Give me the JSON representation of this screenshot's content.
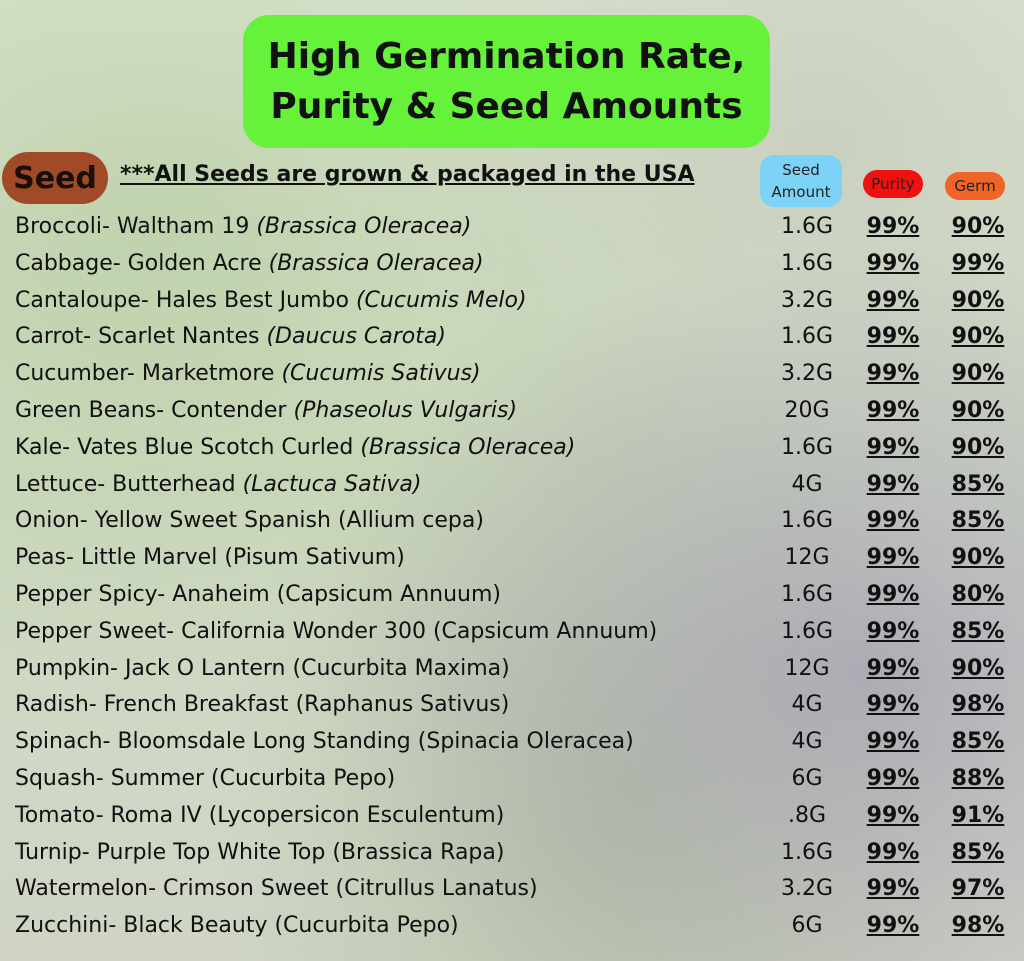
{
  "header": {
    "title": [
      "High Germination Rate,",
      "Purity & Seed Amounts"
    ]
  },
  "table": {
    "headers": {
      "seed": "Seed",
      "amount": "Seed Amount",
      "purity": "Purity",
      "germ": "Germ"
    },
    "note": "***All Seeds are grown & packaged in the USA",
    "rows": [
      {
        "name": "Broccoli- Waltham 19",
        "latin": "(Brassica Oleracea)",
        "italic": true,
        "amount": "1.6G",
        "purity": "99%",
        "germ": "90%"
      },
      {
        "name": "Cabbage- Golden Acre",
        "latin": "(Brassica Oleracea)",
        "italic": true,
        "amount": "1.6G",
        "purity": "99%",
        "germ": "99%"
      },
      {
        "name": "Cantaloupe- Hales Best Jumbo",
        "latin": "(Cucumis Melo)",
        "italic": true,
        "amount": "3.2G",
        "purity": "99%",
        "germ": "90%"
      },
      {
        "name": "Carrot- Scarlet Nantes",
        "latin": "(Daucus Carota)",
        "italic": true,
        "amount": "1.6G",
        "purity": "99%",
        "germ": "90%"
      },
      {
        "name": "Cucumber- Marketmore",
        "latin": "(Cucumis Sativus)",
        "italic": true,
        "amount": "3.2G",
        "purity": "99%",
        "germ": "90%"
      },
      {
        "name": "Green Beans- Contender",
        "latin": "(Phaseolus Vulgaris)",
        "italic": true,
        "amount": "20G",
        "purity": "99%",
        "germ": "90%"
      },
      {
        "name": "Kale- Vates Blue Scotch Curled",
        "latin": "(Brassica Oleracea)",
        "italic": true,
        "amount": "1.6G",
        "purity": "99%",
        "germ": "90%"
      },
      {
        "name": "Lettuce- Butterhead",
        "latin": "(Lactuca Sativa)",
        "italic": true,
        "amount": "4G",
        "purity": "99%",
        "germ": "85%"
      },
      {
        "name": "Onion- Yellow Sweet Spanish",
        "latin": "(Allium cepa)",
        "italic": false,
        "amount": "1.6G",
        "purity": "99%",
        "germ": "85%"
      },
      {
        "name": "Peas- Little Marvel",
        "latin": "(Pisum Sativum)",
        "italic": false,
        "amount": "12G",
        "purity": "99%",
        "germ": "90%"
      },
      {
        "name": "Pepper Spicy- Anaheim",
        "latin": "(Capsicum Annuum)",
        "italic": false,
        "amount": "1.6G",
        "purity": "99%",
        "germ": "80%"
      },
      {
        "name": "Pepper Sweet- California Wonder 300",
        "latin": "(Capsicum Annuum)",
        "italic": false,
        "amount": "1.6G",
        "purity": "99%",
        "germ": "85%"
      },
      {
        "name": "Pumpkin- Jack O Lantern",
        "latin": "(Cucurbita Maxima)",
        "italic": false,
        "amount": "12G",
        "purity": "99%",
        "germ": "90%"
      },
      {
        "name": "Radish- French Breakfast",
        "latin": "(Raphanus Sativus)",
        "italic": false,
        "amount": "4G",
        "purity": "99%",
        "germ": "98%"
      },
      {
        "name": "Spinach- Bloomsdale Long Standing",
        "latin": "(Spinacia Oleracea)",
        "italic": false,
        "amount": "4G",
        "purity": "99%",
        "germ": "85%"
      },
      {
        "name": "Squash- Summer",
        "latin": "(Cucurbita Pepo)",
        "italic": false,
        "amount": "6G",
        "purity": "99%",
        "germ": "88%"
      },
      {
        "name": "Tomato- Roma IV",
        "latin": "(Lycopersicon Esculentum)",
        "italic": false,
        "amount": ".8G",
        "purity": "99%",
        "germ": "91%"
      },
      {
        "name": "Turnip- Purple Top White Top",
        "latin": "(Brassica Rapa)",
        "italic": false,
        "amount": "1.6G",
        "purity": "99%",
        "germ": "85%"
      },
      {
        "name": "Watermelon- Crimson Sweet",
        "latin": "(Citrullus Lanatus)",
        "italic": false,
        "amount": "3.2G",
        "purity": "99%",
        "germ": "97%"
      },
      {
        "name": "Zucchini- Black Beauty",
        "latin": "(Cucurbita Pepo)",
        "italic": false,
        "amount": "6G",
        "purity": "99%",
        "germ": "98%"
      }
    ]
  }
}
